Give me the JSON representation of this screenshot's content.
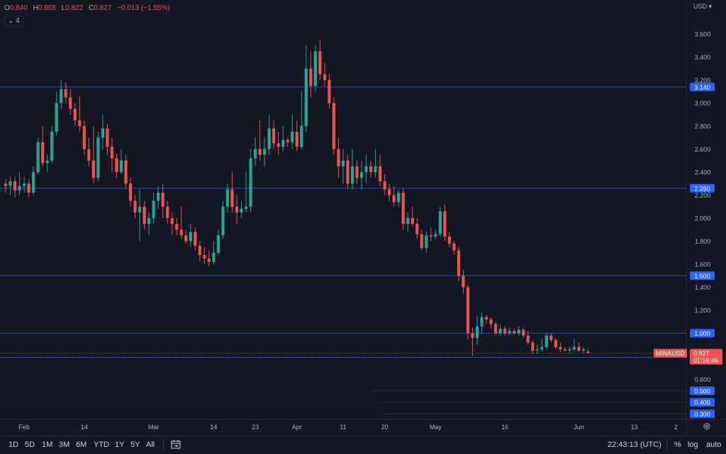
{
  "legend": {
    "open_label": "O",
    "open_value": "0.840",
    "high_label": "H",
    "high_value": "0.865",
    "low_label": "L",
    "low_value": "0.822",
    "close_label": "C",
    "close_value": "0.827",
    "change": "−0.013 (−1.55%)",
    "indicators_count": "4"
  },
  "currency": "USD",
  "colors": {
    "background": "#131722",
    "up": "#26a69a",
    "down": "#ef5350",
    "level_line": "#2962ff",
    "grid_text": "#b2b5be"
  },
  "bottom_bar": {
    "ranges": [
      "1D",
      "5D",
      "1M",
      "3M",
      "6M",
      "YTD",
      "1Y",
      "5Y",
      "All"
    ],
    "clock": "22:43:13 (UTC)",
    "percent": "%",
    "log": "log",
    "auto": "auto",
    "icons": [
      "calendar-range-icon",
      "settings-gear-icon"
    ]
  },
  "chart_data": {
    "type": "candlestick",
    "symbol": "MINAUSD",
    "last_price": "0.827",
    "countdown": "01:16:46",
    "y_ticks": [
      "3.600",
      "3.400",
      "3.200",
      "3.000",
      "2.800",
      "2.600",
      "2.400",
      "2.200",
      "2.000",
      "1.800",
      "1.600",
      "1.400",
      "1.200",
      "0.600"
    ],
    "ylim": [
      0.25,
      3.75
    ],
    "x_ticks": [
      {
        "label": "Feb",
        "index": 4
      },
      {
        "label": "14",
        "index": 17
      },
      {
        "label": "Mar",
        "index": 32
      },
      {
        "label": "14",
        "index": 45
      },
      {
        "label": "23",
        "index": 54
      },
      {
        "label": "Apr",
        "index": 63
      },
      {
        "label": "11",
        "index": 73
      },
      {
        "label": "20",
        "index": 82
      },
      {
        "label": "May",
        "index": 93
      },
      {
        "label": "16",
        "index": 108
      },
      {
        "label": "Jun",
        "index": 124
      },
      {
        "label": "13",
        "index": 136
      },
      {
        "label": "2",
        "index": 145
      }
    ],
    "horizontal_levels": [
      {
        "price": 3.14,
        "label": "3.140"
      },
      {
        "price": 2.26,
        "label": "2.260"
      },
      {
        "price": 1.5,
        "label": "1.500"
      },
      {
        "price": 1.0,
        "label": "1.000"
      },
      {
        "price": 0.79,
        "label": "0.790"
      },
      {
        "price": 0.5,
        "label": "0.500"
      },
      {
        "price": 0.4,
        "label": "0.400"
      },
      {
        "price": 0.3,
        "label": "0.300"
      }
    ],
    "candles": [
      [
        2.3,
        2.34,
        2.22,
        2.28
      ],
      [
        2.28,
        2.36,
        2.2,
        2.32
      ],
      [
        2.32,
        2.36,
        2.18,
        2.24
      ],
      [
        2.24,
        2.4,
        2.2,
        2.28
      ],
      [
        2.28,
        2.36,
        2.22,
        2.3
      ],
      [
        2.3,
        2.34,
        2.18,
        2.22
      ],
      [
        2.22,
        2.45,
        2.2,
        2.4
      ],
      [
        2.4,
        2.7,
        2.38,
        2.66
      ],
      [
        2.66,
        2.8,
        2.45,
        2.48
      ],
      [
        2.48,
        2.55,
        2.4,
        2.5
      ],
      [
        2.5,
        2.8,
        2.48,
        2.75
      ],
      [
        2.75,
        3.1,
        2.72,
        3.0
      ],
      [
        3.0,
        3.2,
        2.95,
        3.12
      ],
      [
        3.12,
        3.18,
        3.0,
        3.05
      ],
      [
        3.05,
        3.12,
        2.9,
        2.95
      ],
      [
        2.95,
        3.0,
        2.8,
        2.85
      ],
      [
        2.85,
        3.06,
        2.75,
        2.8
      ],
      [
        2.8,
        2.85,
        2.55,
        2.6
      ],
      [
        2.6,
        2.7,
        2.45,
        2.5
      ],
      [
        2.5,
        2.8,
        2.3,
        2.35
      ],
      [
        2.35,
        2.75,
        2.32,
        2.7
      ],
      [
        2.7,
        2.9,
        2.6,
        2.78
      ],
      [
        2.78,
        2.82,
        2.55,
        2.62
      ],
      [
        2.62,
        2.7,
        2.4,
        2.52
      ],
      [
        2.52,
        2.56,
        2.35,
        2.4
      ],
      [
        2.4,
        2.6,
        2.38,
        2.5
      ],
      [
        2.5,
        2.55,
        2.25,
        2.3
      ],
      [
        2.3,
        2.35,
        2.1,
        2.15
      ],
      [
        2.15,
        2.2,
        2.0,
        2.05
      ],
      [
        2.05,
        2.25,
        1.8,
        2.1
      ],
      [
        2.1,
        2.15,
        1.9,
        1.95
      ],
      [
        1.95,
        2.05,
        1.85,
        2.0
      ],
      [
        2.0,
        2.22,
        1.95,
        2.15
      ],
      [
        2.15,
        2.28,
        2.08,
        2.22
      ],
      [
        2.22,
        2.3,
        2.0,
        2.1
      ],
      [
        2.1,
        2.15,
        1.95,
        2.0
      ],
      [
        2.0,
        2.05,
        1.85,
        1.95
      ],
      [
        1.95,
        2.0,
        1.85,
        1.9
      ],
      [
        1.9,
        2.1,
        1.82,
        1.85
      ],
      [
        1.85,
        1.9,
        1.78,
        1.8
      ],
      [
        1.8,
        1.95,
        1.75,
        1.88
      ],
      [
        1.88,
        1.92,
        1.72,
        1.76
      ],
      [
        1.76,
        1.8,
        1.62,
        1.68
      ],
      [
        1.68,
        1.75,
        1.6,
        1.65
      ],
      [
        1.65,
        1.72,
        1.58,
        1.62
      ],
      [
        1.62,
        1.8,
        1.6,
        1.7
      ],
      [
        1.7,
        1.9,
        1.68,
        1.85
      ],
      [
        1.85,
        2.15,
        1.82,
        2.1
      ],
      [
        2.1,
        2.3,
        2.05,
        2.25
      ],
      [
        2.25,
        2.4,
        2.05,
        2.1
      ],
      [
        2.1,
        2.2,
        1.95,
        2.05
      ],
      [
        2.05,
        2.15,
        2.0,
        2.08
      ],
      [
        2.08,
        2.4,
        2.05,
        2.1
      ],
      [
        2.1,
        2.6,
        2.05,
        2.52
      ],
      [
        2.52,
        2.7,
        2.45,
        2.6
      ],
      [
        2.6,
        2.85,
        2.5,
        2.55
      ],
      [
        2.55,
        2.7,
        2.45,
        2.6
      ],
      [
        2.6,
        2.9,
        2.55,
        2.78
      ],
      [
        2.78,
        2.85,
        2.6,
        2.65
      ],
      [
        2.65,
        2.75,
        2.55,
        2.62
      ],
      [
        2.62,
        2.8,
        2.58,
        2.68
      ],
      [
        2.68,
        2.7,
        2.62,
        2.66
      ],
      [
        2.66,
        2.9,
        2.6,
        2.75
      ],
      [
        2.75,
        2.85,
        2.58,
        2.62
      ],
      [
        2.62,
        3.1,
        2.6,
        2.8
      ],
      [
        2.8,
        3.5,
        2.75,
        3.3
      ],
      [
        3.3,
        3.45,
        3.05,
        3.15
      ],
      [
        3.15,
        3.5,
        3.1,
        3.45
      ],
      [
        3.45,
        3.55,
        3.2,
        3.25
      ],
      [
        3.25,
        3.35,
        3.15,
        3.2
      ],
      [
        3.2,
        3.25,
        2.95,
        3.0
      ],
      [
        3.0,
        3.05,
        2.55,
        2.6
      ],
      [
        2.6,
        2.7,
        2.35,
        2.45
      ],
      [
        2.45,
        2.6,
        2.3,
        2.5
      ],
      [
        2.5,
        2.55,
        2.25,
        2.3
      ],
      [
        2.3,
        2.6,
        2.25,
        2.45
      ],
      [
        2.45,
        2.5,
        2.3,
        2.35
      ],
      [
        2.35,
        2.5,
        2.25,
        2.4
      ],
      [
        2.4,
        2.55,
        2.3,
        2.45
      ],
      [
        2.45,
        2.5,
        2.35,
        2.4
      ],
      [
        2.4,
        2.6,
        2.35,
        2.45
      ],
      [
        2.45,
        2.55,
        2.28,
        2.32
      ],
      [
        2.32,
        2.38,
        2.2,
        2.25
      ],
      [
        2.25,
        2.3,
        2.15,
        2.2
      ],
      [
        2.2,
        2.28,
        2.1,
        2.14
      ],
      [
        2.14,
        2.25,
        2.1,
        2.22
      ],
      [
        2.22,
        2.26,
        1.9,
        1.95
      ],
      [
        1.95,
        2.05,
        1.88,
        2.0
      ],
      [
        2.0,
        2.1,
        1.92,
        1.95
      ],
      [
        1.95,
        2.0,
        1.82,
        1.86
      ],
      [
        1.86,
        1.9,
        1.72,
        1.74
      ],
      [
        1.74,
        1.88,
        1.7,
        1.85
      ],
      [
        1.85,
        1.92,
        1.8,
        1.84
      ],
      [
        1.84,
        1.9,
        1.82,
        1.86
      ],
      [
        1.86,
        2.1,
        1.84,
        2.06
      ],
      [
        2.06,
        2.12,
        1.8,
        1.84
      ],
      [
        1.84,
        1.88,
        1.75,
        1.78
      ],
      [
        1.78,
        1.8,
        1.68,
        1.72
      ],
      [
        1.72,
        1.75,
        1.45,
        1.5
      ],
      [
        1.5,
        1.55,
        1.35,
        1.4
      ],
      [
        1.4,
        1.42,
        0.95,
        1.0
      ],
      [
        1.0,
        1.05,
        0.8,
        0.96
      ],
      [
        0.96,
        1.15,
        0.9,
        1.06
      ],
      [
        1.06,
        1.18,
        1.0,
        1.14
      ],
      [
        1.14,
        1.16,
        1.08,
        1.12
      ],
      [
        1.12,
        1.14,
        1.04,
        1.08
      ],
      [
        1.08,
        1.1,
        0.98,
        1.0
      ],
      [
        1.0,
        1.08,
        0.98,
        1.04
      ],
      [
        1.04,
        1.06,
        0.98,
        1.0
      ],
      [
        1.0,
        1.05,
        0.98,
        1.02
      ],
      [
        1.02,
        1.04,
        0.98,
        1.0
      ],
      [
        1.0,
        1.06,
        0.98,
        1.03
      ],
      [
        1.03,
        1.05,
        0.96,
        0.98
      ],
      [
        0.98,
        1.02,
        0.9,
        0.92
      ],
      [
        0.92,
        0.94,
        0.82,
        0.85
      ],
      [
        0.85,
        0.9,
        0.82,
        0.86
      ],
      [
        0.86,
        0.95,
        0.84,
        0.88
      ],
      [
        0.88,
        1.0,
        0.86,
        0.98
      ],
      [
        0.98,
        1.0,
        0.92,
        0.94
      ],
      [
        0.94,
        0.96,
        0.86,
        0.88
      ],
      [
        0.88,
        0.92,
        0.84,
        0.86
      ],
      [
        0.86,
        0.88,
        0.84,
        0.85
      ],
      [
        0.85,
        0.88,
        0.83,
        0.86
      ],
      [
        0.86,
        0.95,
        0.84,
        0.88
      ],
      [
        0.88,
        0.92,
        0.84,
        0.85
      ],
      [
        0.85,
        0.88,
        0.83,
        0.86
      ],
      [
        0.84,
        0.865,
        0.822,
        0.827
      ]
    ]
  }
}
